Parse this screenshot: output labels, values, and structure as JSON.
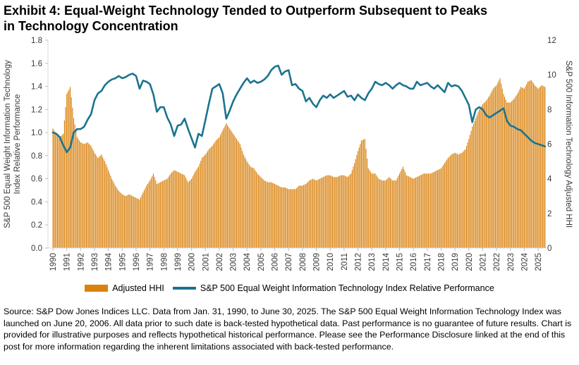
{
  "title": {
    "line1": "Exhibit 4: Equal-Weight Technology Tended to Outperform Subsequent to Peaks",
    "line2": "in Technology Concentration"
  },
  "legend": {
    "bar_label": "Adjusted HHI",
    "line_label": "S&P 500 Equal Weight Information Technology Index Relative Performance"
  },
  "source_text": "Source: S&P Dow Jones Indices LLC. Data from Jan. 31, 1990, to June 30, 2025. The S&P 500 Equal Weight Information Technology Index was launched on June 20, 2006. All data prior to such date is back-tested hypothetical data. Past performance is no guarantee of future results. Chart is provided for illustrative purposes and reflects hypothetical historical performance. Please see the Performance Disclosure linked at the end of this post for more information regarding the inherent limitations associated with back-tested performance.",
  "colors": {
    "bar": "#D9820F",
    "line": "#1A7490",
    "axis_line": "#D9D9D9",
    "tick_mark": "#BFBFBF",
    "tick_text": "#3A3A3A",
    "title_text": "#000000"
  },
  "chart_data": {
    "type": "combo",
    "x_sampling": "quarterly, Jan 1990 to Jun 2025",
    "x_start": 1990.0,
    "x_step": 0.25,
    "left_axis": {
      "label_lines": [
        "S&P 500 Equal Weight Information Technology",
        "Index Relative Performance"
      ],
      "min": 0.0,
      "max": 1.8,
      "tick_step": 0.2
    },
    "right_axis": {
      "label": "S&P 500 Information Technology Adjusted HHI",
      "min": 0,
      "max": 12,
      "tick_step": 2
    },
    "x_axis": {
      "tick_years": [
        "1990",
        "1991",
        "1992",
        "1993",
        "1994",
        "1995",
        "1996",
        "1997",
        "1998",
        "1999",
        "2000",
        "2001",
        "2002",
        "2003",
        "2004",
        "2005",
        "2006",
        "2007",
        "2008",
        "2009",
        "2010",
        "2011",
        "2012",
        "2013",
        "2014",
        "2015",
        "2016",
        "2017",
        "2018",
        "2019",
        "2020",
        "2021",
        "2022",
        "2023",
        "2024",
        "2025"
      ]
    },
    "series": [
      {
        "name": "Adjusted HHI",
        "type": "bar",
        "axis": "right",
        "values": [
          6.9,
          6.6,
          6.4,
          6.6,
          8.9,
          9.3,
          7.5,
          6.4,
          6.1,
          6.0,
          6.1,
          5.9,
          5.5,
          5.2,
          5.4,
          5.0,
          4.5,
          4.0,
          3.6,
          3.3,
          3.1,
          3.0,
          3.1,
          3.0,
          2.9,
          2.8,
          3.2,
          3.6,
          3.9,
          4.3,
          3.7,
          3.8,
          3.9,
          4.0,
          4.3,
          4.5,
          4.4,
          4.3,
          4.2,
          3.8,
          4.0,
          4.4,
          4.7,
          5.2,
          5.4,
          5.7,
          5.9,
          6.2,
          6.4,
          6.8,
          7.2,
          6.9,
          6.6,
          6.3,
          6.0,
          5.4,
          5.0,
          4.7,
          4.6,
          4.3,
          4.1,
          3.9,
          3.8,
          3.8,
          3.7,
          3.6,
          3.5,
          3.5,
          3.4,
          3.4,
          3.4,
          3.6,
          3.6,
          3.7,
          3.9,
          4.0,
          3.9,
          4.0,
          4.1,
          4.2,
          4.2,
          4.1,
          4.1,
          4.2,
          4.2,
          4.1,
          4.3,
          4.9,
          5.6,
          6.2,
          6.3,
          4.6,
          4.3,
          4.3,
          4.0,
          3.9,
          3.9,
          4.1,
          3.9,
          3.9,
          4.3,
          4.7,
          4.2,
          4.1,
          4.0,
          4.1,
          4.2,
          4.3,
          4.3,
          4.3,
          4.4,
          4.5,
          4.6,
          4.9,
          5.2,
          5.4,
          5.5,
          5.4,
          5.5,
          5.7,
          6.3,
          7.0,
          7.5,
          8.0,
          8.3,
          8.5,
          8.8,
          9.2,
          9.4,
          9.8,
          8.9,
          8.4,
          8.4,
          8.6,
          8.9,
          9.3,
          9.2,
          9.6,
          9.7,
          9.4,
          9.2,
          9.4,
          9.3
        ]
      },
      {
        "name": "S&P 500 Equal Weight Information Technology Index Relative Performance",
        "type": "line",
        "axis": "left",
        "values": [
          1.0,
          0.99,
          0.96,
          0.89,
          0.83,
          0.87,
          1.0,
          1.03,
          1.03,
          1.05,
          1.11,
          1.16,
          1.28,
          1.34,
          1.36,
          1.41,
          1.44,
          1.46,
          1.47,
          1.49,
          1.47,
          1.48,
          1.5,
          1.51,
          1.49,
          1.38,
          1.45,
          1.44,
          1.42,
          1.33,
          1.18,
          1.22,
          1.22,
          1.13,
          1.07,
          0.97,
          1.06,
          1.07,
          1.12,
          1.03,
          0.95,
          0.87,
          0.99,
          0.97,
          1.11,
          1.25,
          1.38,
          1.4,
          1.42,
          1.34,
          1.12,
          1.19,
          1.27,
          1.33,
          1.38,
          1.43,
          1.47,
          1.43,
          1.45,
          1.43,
          1.44,
          1.46,
          1.49,
          1.54,
          1.57,
          1.58,
          1.5,
          1.53,
          1.54,
          1.41,
          1.42,
          1.38,
          1.36,
          1.27,
          1.3,
          1.25,
          1.22,
          1.28,
          1.32,
          1.3,
          1.33,
          1.3,
          1.32,
          1.34,
          1.36,
          1.31,
          1.32,
          1.28,
          1.33,
          1.3,
          1.28,
          1.34,
          1.38,
          1.44,
          1.42,
          1.41,
          1.43,
          1.41,
          1.38,
          1.41,
          1.43,
          1.41,
          1.4,
          1.38,
          1.38,
          1.44,
          1.41,
          1.42,
          1.43,
          1.4,
          1.38,
          1.41,
          1.38,
          1.35,
          1.43,
          1.4,
          1.41,
          1.4,
          1.36,
          1.3,
          1.24,
          1.09,
          1.2,
          1.22,
          1.2,
          1.15,
          1.13,
          1.15,
          1.17,
          1.19,
          1.21,
          1.1,
          1.06,
          1.05,
          1.03,
          1.02,
          0.99,
          0.96,
          0.93,
          0.91,
          0.9,
          0.89,
          0.88
        ]
      }
    ]
  }
}
